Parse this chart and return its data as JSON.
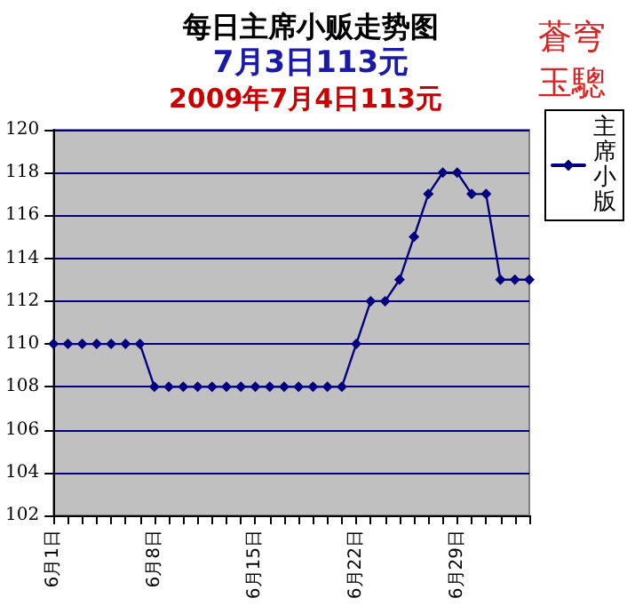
{
  "chart_data": {
    "type": "line",
    "title": "每日主席小贩走势图",
    "subtitle": "7月3日113元",
    "annotations": [
      "2009年7月4日113元",
      "蒼穹玉驄"
    ],
    "categories": [
      "6月1日",
      null,
      null,
      null,
      null,
      null,
      null,
      "6月8日",
      null,
      null,
      null,
      null,
      null,
      null,
      "6月15日",
      null,
      null,
      null,
      null,
      null,
      null,
      "6月22日",
      null,
      null,
      null,
      null,
      null,
      null,
      "6月29日",
      null,
      null,
      null,
      null,
      null
    ],
    "series": [
      {
        "name": "主席小版",
        "color": "#000080",
        "values": [
          110,
          110,
          110,
          110,
          110,
          110,
          110,
          108,
          108,
          108,
          108,
          108,
          108,
          108,
          108,
          108,
          108,
          108,
          108,
          108,
          108,
          110,
          112,
          112,
          113,
          115,
          117,
          118,
          118,
          117,
          117,
          113,
          113,
          113
        ]
      }
    ],
    "ylim": [
      102,
      120
    ],
    "yticks": [
      102,
      104,
      106,
      108,
      110,
      112,
      114,
      116,
      118,
      120
    ],
    "grid": "y",
    "legend": "top right",
    "marker": "diamond",
    "line_style": "solid"
  }
}
